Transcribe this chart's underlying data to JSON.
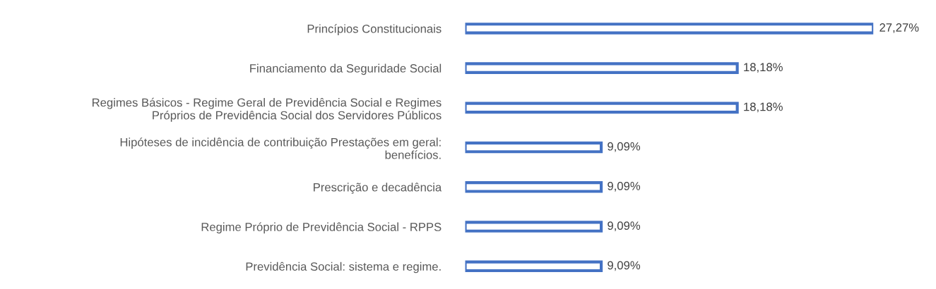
{
  "chart_data": {
    "type": "bar",
    "orientation": "horizontal",
    "categories": [
      "Princípios Constitucionais",
      "Financiamento da Seguridade Social",
      "Regimes Básicos - Regime Geral de Previdência Social e Regimes\nPróprios de Previdência Social dos Servidores Públicos",
      "Hipóteses de incidência de contribuição Prestações em geral:\nbenefícios.",
      "Prescrição e decadência",
      "Regime Próprio de Previdência Social - RPPS",
      "Previdência Social: sistema e regime."
    ],
    "values": [
      27.27,
      18.18,
      18.18,
      9.09,
      9.09,
      9.09,
      9.09
    ],
    "value_labels": [
      "27,27%",
      "18,18%",
      "18,18%",
      "9,09%",
      "9,09%",
      "9,09%",
      "9,09%"
    ],
    "color": "#4472c4",
    "grid": false,
    "legend": false
  }
}
